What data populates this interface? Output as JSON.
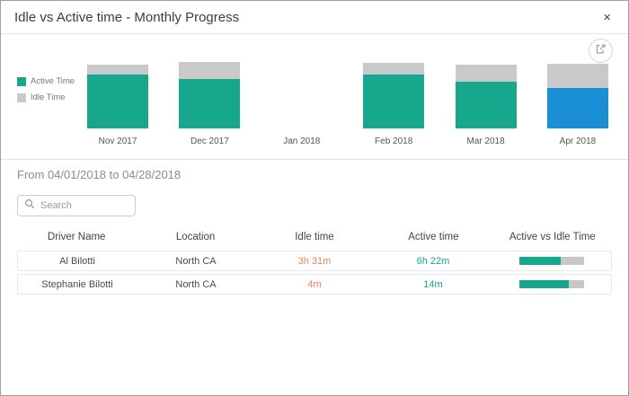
{
  "modal": {
    "title": "Idle vs Active time - Monthly Progress",
    "close_label": "×"
  },
  "chart_data": {
    "type": "bar",
    "stacked": true,
    "title": "Idle vs Active time - Monthly Progress",
    "categories": [
      "Nov 2017",
      "Dec 2017",
      "Jan 2018",
      "Feb 2018",
      "Mar 2018",
      "Apr 2018"
    ],
    "series": [
      {
        "name": "Active Time",
        "color": "#16a78c",
        "values": [
          80,
          74,
          0,
          81,
          70,
          61
        ]
      },
      {
        "name": "Idle Time",
        "color": "#c9c9c9",
        "values": [
          15,
          25,
          0,
          17,
          25,
          35
        ]
      }
    ],
    "ylim": [
      0,
      100
    ],
    "grid": false,
    "legend_position": "left",
    "selected_category": "Apr 2018",
    "selected_color": "#1b8fd6"
  },
  "filter": {
    "date_range_label": "From 04/01/2018 to 04/28/2018",
    "search_placeholder": "Search"
  },
  "table": {
    "columns": [
      "Driver Name",
      "Location",
      "Idle time",
      "Active time",
      "Active vs Idle Time"
    ],
    "rows": [
      {
        "driver": "Al Bilotti",
        "location": "North CA",
        "idle": "3h 31m",
        "active": "6h 22m",
        "active_pct": 64
      },
      {
        "driver": "Stephanie Bilotti",
        "location": "North CA",
        "idle": "4m",
        "active": "14m",
        "active_pct": 76
      }
    ]
  },
  "colors": {
    "active": "#16a78c",
    "idle_bar": "#c9c9c9",
    "selected_bar": "#1b8fd6",
    "idle_text": "#ef8354",
    "active_text": "#16a78c"
  }
}
